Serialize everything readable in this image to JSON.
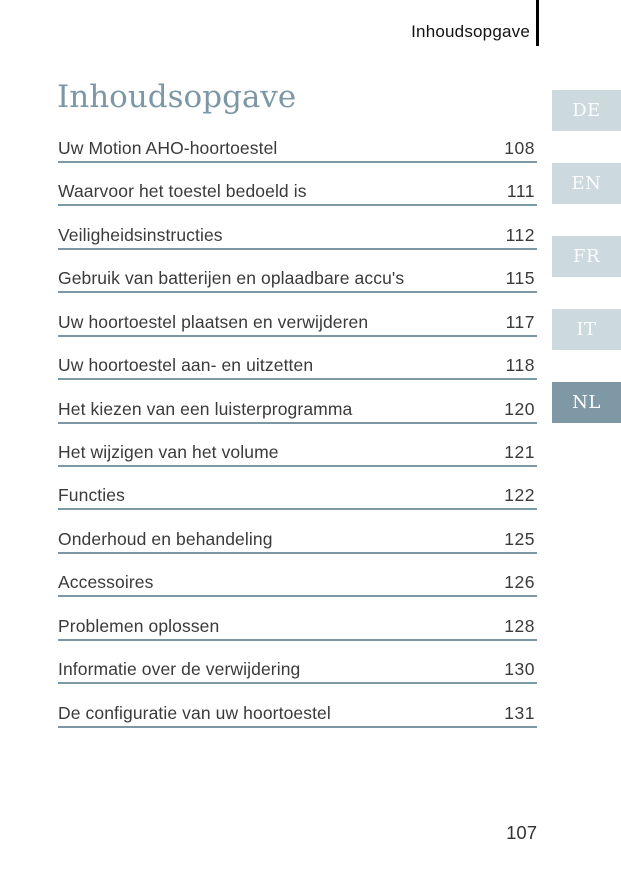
{
  "header": {
    "running_title": "Inhoudsopgave"
  },
  "title": "Inhoudsopgave",
  "toc": [
    {
      "label": "Uw Motion AHO-hoortoestel",
      "page": "108"
    },
    {
      "label": "Waarvoor het toestel bedoeld is",
      "page": "111"
    },
    {
      "label": "Veiligheidsinstructies",
      "page": "112"
    },
    {
      "label": "Gebruik van batterijen en oplaadbare accu's",
      "page": "115"
    },
    {
      "label": "Uw hoortoestel plaatsen en verwijderen",
      "page": "117"
    },
    {
      "label": "Uw hoortoestel aan- en uitzetten",
      "page": "118"
    },
    {
      "label": "Het kiezen van een luisterprogramma",
      "page": "120"
    },
    {
      "label": "Het wijzigen van het volume",
      "page": "121"
    },
    {
      "label": "Functies",
      "page": "122"
    },
    {
      "label": "Onderhoud en behandeling",
      "page": "125"
    },
    {
      "label": "Accessoires",
      "page": "126"
    },
    {
      "label": "Problemen oplossen",
      "page": "128"
    },
    {
      "label": "Informatie over de verwijdering",
      "page": "130"
    },
    {
      "label": "De configuratie van uw hoortoestel",
      "page": "131"
    }
  ],
  "language_tabs": [
    {
      "code": "DE",
      "active": false
    },
    {
      "code": "EN",
      "active": false
    },
    {
      "code": "FR",
      "active": false
    },
    {
      "code": "IT",
      "active": false
    },
    {
      "code": "NL",
      "active": true
    }
  ],
  "footer": {
    "page_number": "107"
  },
  "colors": {
    "accent": "#7c98a6",
    "header_text": "#111111",
    "body_text": "#3a3a3a",
    "tab_inactive_bg": "#ccd9df",
    "tab_inactive_text": "rgba(255,255,255,0.92)",
    "tab_active_bg": "#7e98a5",
    "tab_active_text": "#ffffff"
  }
}
